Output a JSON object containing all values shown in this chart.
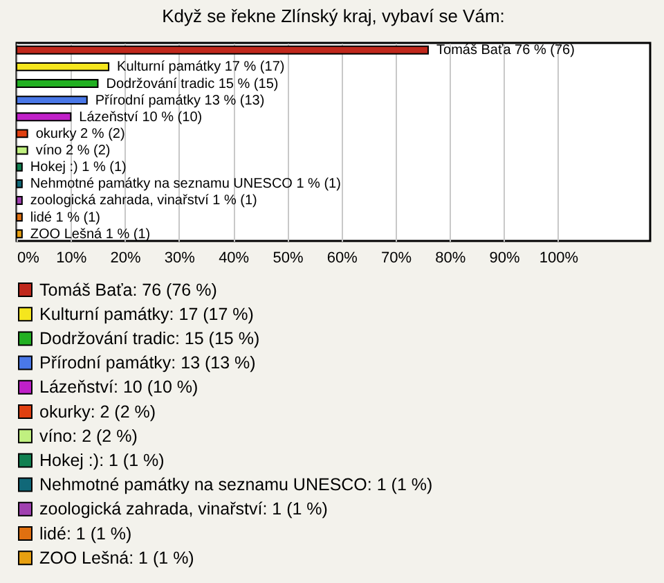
{
  "chart_data": {
    "type": "bar",
    "orientation": "horizontal",
    "title": "Když se řekne Zlínský kraj, vybaví se Vám:",
    "categories": [
      null,
      null,
      null,
      null,
      null,
      null,
      null,
      null,
      null,
      null,
      null,
      null
    ],
    "series": [
      {
        "name": "Tomáš Baťa: 76 (76 %)",
        "color": "#c0281c",
        "values": [
          76,
          null,
          null,
          null,
          null,
          null,
          null,
          null,
          null,
          null,
          null,
          null
        ],
        "value_labels": [
          "Tomáš Baťa 76 % (76)",
          null,
          null,
          null,
          null,
          null,
          null,
          null,
          null,
          null,
          null,
          null
        ]
      },
      {
        "name": "Kulturní památky: 17 (17 %)",
        "color": "#f5e61e",
        "values": [
          null,
          17,
          null,
          null,
          null,
          null,
          null,
          null,
          null,
          null,
          null,
          null
        ],
        "value_labels": [
          null,
          "Kulturní památky 17 % (17)",
          null,
          null,
          null,
          null,
          null,
          null,
          null,
          null,
          null,
          null
        ]
      },
      {
        "name": "Dodržování tradic: 15 (15 %)",
        "color": "#22b022",
        "values": [
          null,
          null,
          15,
          null,
          null,
          null,
          null,
          null,
          null,
          null,
          null,
          null
        ],
        "value_labels": [
          null,
          null,
          "Dodržování tradic 15 % (15)",
          null,
          null,
          null,
          null,
          null,
          null,
          null,
          null,
          null
        ]
      },
      {
        "name": "Přírodní památky: 13 (13 %)",
        "color": "#4a78e8",
        "values": [
          null,
          null,
          null,
          13,
          null,
          null,
          null,
          null,
          null,
          null,
          null,
          null
        ],
        "value_labels": [
          null,
          null,
          null,
          "Přírodní památky 13 % (13)",
          null,
          null,
          null,
          null,
          null,
          null,
          null,
          null
        ]
      },
      {
        "name": "Lázeňství: 10 (10 %)",
        "color": "#c020c8",
        "values": [
          null,
          null,
          null,
          null,
          10,
          null,
          null,
          null,
          null,
          null,
          null,
          null
        ],
        "value_labels": [
          null,
          null,
          null,
          null,
          "Lázeňství 10 % (10)",
          null,
          null,
          null,
          null,
          null,
          null,
          null
        ]
      },
      {
        "name": "okurky: 2 (2 %)",
        "color": "#e04010",
        "values": [
          null,
          null,
          null,
          null,
          null,
          2,
          null,
          null,
          null,
          null,
          null,
          null
        ],
        "value_labels": [
          null,
          null,
          null,
          null,
          null,
          "okurky 2 % (2)",
          null,
          null,
          null,
          null,
          null,
          null
        ]
      },
      {
        "name": "víno: 2 (2 %)",
        "color": "#c0f080",
        "values": [
          null,
          null,
          null,
          null,
          null,
          null,
          2,
          null,
          null,
          null,
          null,
          null
        ],
        "value_labels": [
          null,
          null,
          null,
          null,
          null,
          null,
          "víno 2 % (2)",
          null,
          null,
          null,
          null,
          null
        ]
      },
      {
        "name": "Hokej :): 1 (1 %)",
        "color": "#108050",
        "values": [
          null,
          null,
          null,
          null,
          null,
          null,
          null,
          1,
          null,
          null,
          null,
          null
        ],
        "value_labels": [
          null,
          null,
          null,
          null,
          null,
          null,
          null,
          "Hokej :) 1 % (1)",
          null,
          null,
          null,
          null
        ]
      },
      {
        "name": "Nehmotné památky na seznamu UNESCO: 1 (1 %)",
        "color": "#106878",
        "values": [
          null,
          null,
          null,
          null,
          null,
          null,
          null,
          null,
          1,
          null,
          null,
          null
        ],
        "value_labels": [
          null,
          null,
          null,
          null,
          null,
          null,
          null,
          null,
          "Nehmotné památky na seznamu UNESCO 1 % (1)",
          null,
          null,
          null
        ]
      },
      {
        "name": "zoologická zahrada, vinařství: 1 (1 %)",
        "color": "#a040b0",
        "values": [
          null,
          null,
          null,
          null,
          null,
          null,
          null,
          null,
          null,
          1,
          null,
          null
        ],
        "value_labels": [
          null,
          null,
          null,
          null,
          null,
          null,
          null,
          null,
          null,
          "zoologická zahrada, vinařství 1 % (1)",
          null,
          null
        ]
      },
      {
        "name": "lidé: 1 (1 %)",
        "color": "#e07010",
        "values": [
          null,
          null,
          null,
          null,
          null,
          null,
          null,
          null,
          null,
          null,
          1,
          null
        ],
        "value_labels": [
          null,
          null,
          null,
          null,
          null,
          null,
          null,
          null,
          null,
          null,
          "lidé 1 % (1)",
          null
        ]
      },
      {
        "name": "ZOO Lešná: 1 (1 %)",
        "color": "#e8a010",
        "values": [
          null,
          null,
          null,
          null,
          null,
          null,
          null,
          null,
          null,
          null,
          null,
          1
        ],
        "value_labels": [
          null,
          null,
          null,
          null,
          null,
          null,
          null,
          null,
          null,
          null,
          null,
          "ZOO Lešná 1 % (1)"
        ]
      }
    ],
    "xlim": [
      0,
      117
    ],
    "xticks": [
      {
        "value": 0,
        "label": "0%"
      },
      {
        "value": 10,
        "label": "10%"
      },
      {
        "value": 20,
        "label": "20%"
      },
      {
        "value": 30,
        "label": "30%"
      },
      {
        "value": 40,
        "label": "40%"
      },
      {
        "value": 50,
        "label": "50%"
      },
      {
        "value": 60,
        "label": "60%"
      },
      {
        "value": 70,
        "label": "70%"
      },
      {
        "value": 80,
        "label": "80%"
      },
      {
        "value": 90,
        "label": "90%"
      },
      {
        "value": 100,
        "label": "100%"
      }
    ],
    "grid": "x",
    "legend": "bottom",
    "tick_labels": "x"
  }
}
